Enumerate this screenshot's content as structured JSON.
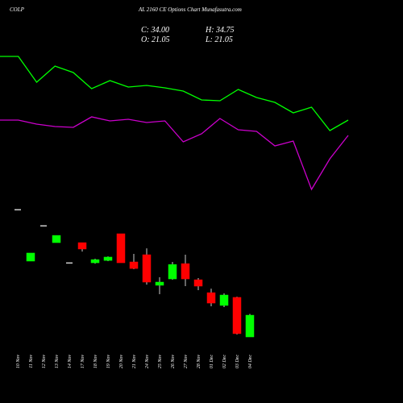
{
  "header": {
    "symbol": "COLP",
    "title": "AL 2160 CE Options Chart Munafasutra.com",
    "close": "C: 34.00",
    "high": "H: 34.75",
    "open": "O: 21.05",
    "low": "L: 21.05"
  },
  "chart_data": [
    {
      "type": "candlestick",
      "categories": [
        "10 Nov",
        "11 Nov",
        "12 Nov",
        "13 Nov",
        "14 Nov",
        "17 Nov",
        "18 Nov",
        "19 Nov",
        "20 Nov",
        "21 Nov",
        "24 Nov",
        "25 Nov",
        "26 Nov",
        "27 Nov",
        "28 Nov",
        "01 Dec",
        "02 Dec",
        "03 Dec",
        "04 Dec"
      ],
      "open": [
        96.9,
        66.2,
        87.3,
        77.2,
        65.2,
        77.2,
        65.2,
        66.6,
        82.5,
        65.7,
        70.0,
        51.8,
        55.6,
        64.7,
        55.1,
        47.4,
        39.8,
        44.6,
        21.05
      ],
      "high": [
        96.9,
        71.0,
        87.3,
        81.5,
        65.2,
        77.2,
        67.6,
        69.0,
        82.5,
        70.5,
        73.8,
        56.6,
        65.7,
        70.0,
        56.1,
        49.8,
        47.0,
        45.0,
        34.75
      ],
      "low": [
        96.9,
        66.2,
        87.3,
        77.2,
        65.2,
        71.9,
        64.7,
        66.2,
        65.2,
        61.4,
        52.2,
        46.5,
        55.1,
        51.3,
        48.9,
        39.3,
        38.8,
        22.5,
        21.05
      ],
      "close": [
        96.9,
        71.0,
        87.3,
        81.5,
        65.2,
        73.4,
        67.1,
        68.6,
        65.2,
        61.8,
        53.7,
        53.7,
        64.2,
        55.6,
        51.3,
        41.2,
        46.0,
        23.0,
        34.0
      ],
      "up_color": "#00ff00",
      "down_color": "#ff0000",
      "ylim": [
        -18.3,
        221.7
      ]
    },
    {
      "type": "line",
      "categories": [
        null,
        null,
        null,
        null,
        null,
        null,
        null,
        null,
        null,
        null,
        null,
        null,
        null,
        null,
        null,
        null,
        null,
        null,
        null,
        null
      ],
      "series": [
        {
          "color": "#00ff00",
          "values": [
            430,
            430,
            398,
            418,
            410,
            390,
            400,
            392,
            394,
            391,
            387,
            376,
            375,
            389,
            379,
            373,
            360,
            367,
            338,
            351
          ]
        },
        {
          "color": "#cc00cc",
          "values": [
            351,
            351,
            346,
            343,
            342,
            355,
            350,
            352,
            348,
            350,
            324,
            334,
            353,
            339,
            337,
            319,
            325,
            265,
            303,
            332
          ]
        }
      ],
      "ylim": [
        0,
        500
      ]
    }
  ]
}
